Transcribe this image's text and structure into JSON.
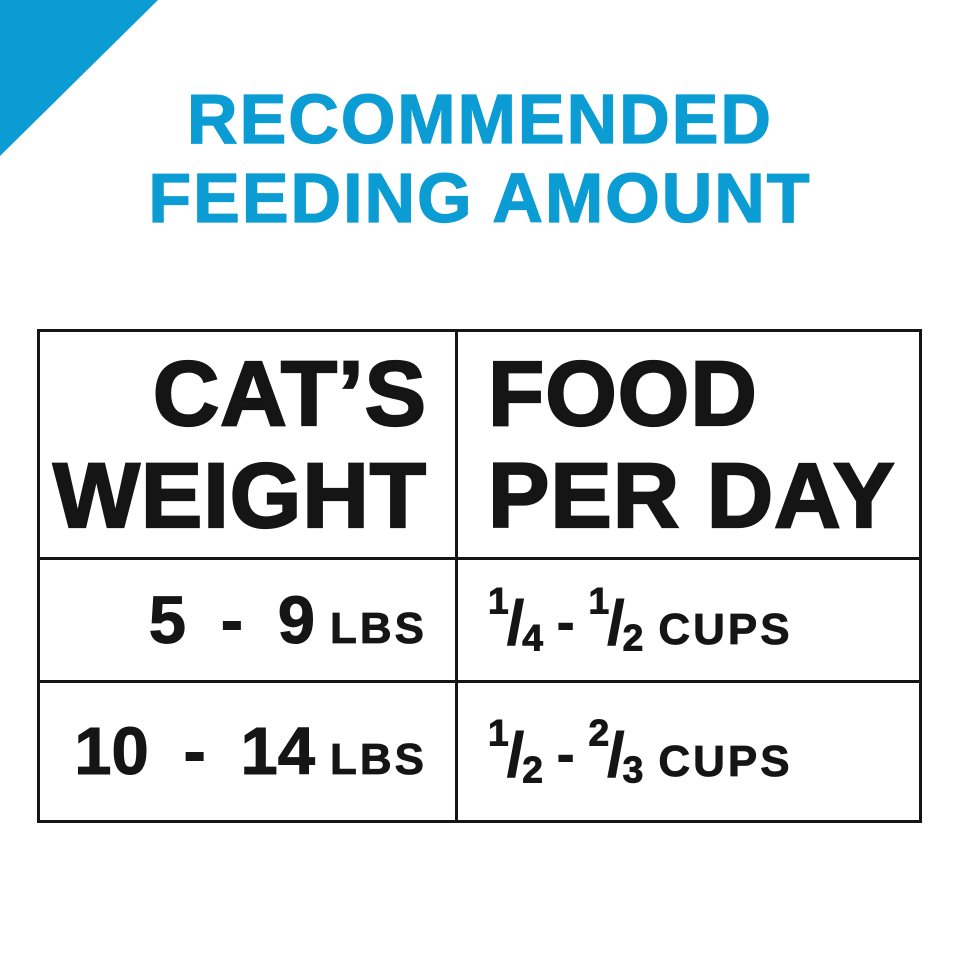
{
  "page": {
    "background_color": "#ffffff",
    "accent_color": "#0b9cd3",
    "text_color": "#151515",
    "border_color": "#151515"
  },
  "title": {
    "line1": "RECOMMENDED",
    "line2": "FEEDING AMOUNT"
  },
  "table": {
    "headers": [
      {
        "line1": "CAT’S",
        "line2": "WEIGHT"
      },
      {
        "line1": "FOOD",
        "line2": "PER DAY"
      }
    ],
    "rows": [
      {
        "weight": {
          "range": "5 - 9",
          "unit": "LBS"
        },
        "food": {
          "from": {
            "num": "1",
            "den": "4"
          },
          "to": {
            "num": "1",
            "den": "2"
          },
          "slash": "/",
          "sep": "-",
          "unit": "CUPS"
        }
      },
      {
        "weight": {
          "range": "10 - 14",
          "unit": "LBS"
        },
        "food": {
          "from": {
            "num": "1",
            "den": "2"
          },
          "to": {
            "num": "2",
            "den": "3"
          },
          "slash": "/",
          "sep": "-",
          "unit": "CUPS"
        }
      }
    ]
  }
}
